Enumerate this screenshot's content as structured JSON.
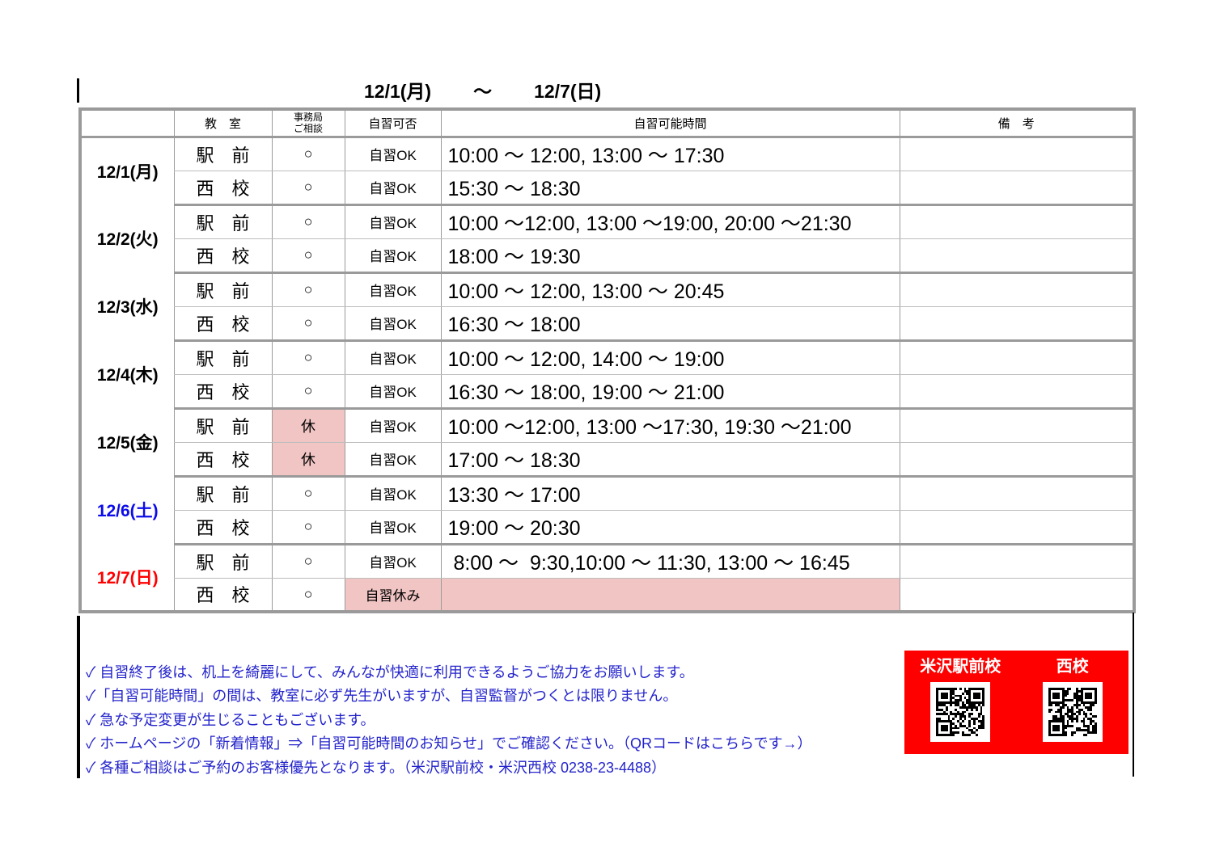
{
  "title": {
    "start": "12/1(月)",
    "tilde": "～",
    "end": "12/7(日)"
  },
  "table": {
    "headers": {
      "classroom": "教　室",
      "office_line1": "事務局",
      "office_line2": "ご相談",
      "availability": "自習可否",
      "hours": "自習可能時間",
      "remarks": "備　考"
    },
    "days": [
      {
        "date": "12/1(月)",
        "color": "#000000",
        "rows": [
          {
            "classroom": "駅　前",
            "office": "○",
            "availability": "自習OK",
            "hours": "10:00 ～ 12:00, 13:00 ～ 17:30",
            "remarks": ""
          },
          {
            "classroom": "西　校",
            "office": "○",
            "availability": "自習OK",
            "hours": "15:30 ～ 18:30",
            "remarks": ""
          }
        ]
      },
      {
        "date": "12/2(火)",
        "color": "#000000",
        "rows": [
          {
            "classroom": "駅　前",
            "office": "○",
            "availability": "自習OK",
            "hours": "10:00 ～12:00, 13:00 ～19:00, 20:00 ～21:30",
            "remarks": ""
          },
          {
            "classroom": "西　校",
            "office": "○",
            "availability": "自習OK",
            "hours": "18:00 ～ 19:30",
            "remarks": ""
          }
        ]
      },
      {
        "date": "12/3(水)",
        "color": "#000000",
        "rows": [
          {
            "classroom": "駅　前",
            "office": "○",
            "availability": "自習OK",
            "hours": "10:00 ～ 12:00, 13:00 ～ 20:45",
            "remarks": ""
          },
          {
            "classroom": "西　校",
            "office": "○",
            "availability": "自習OK",
            "hours": "16:30 ～ 18:00",
            "remarks": ""
          }
        ]
      },
      {
        "date": "12/4(木)",
        "color": "#000000",
        "rows": [
          {
            "classroom": "駅　前",
            "office": "○",
            "availability": "自習OK",
            "hours": "10:00 ～ 12:00, 14:00 ～ 19:00",
            "remarks": ""
          },
          {
            "classroom": "西　校",
            "office": "○",
            "availability": "自習OK",
            "hours": "16:30 ～ 18:00, 19:00 ～ 21:00",
            "remarks": ""
          }
        ]
      },
      {
        "date": "12/5(金)",
        "color": "#000000",
        "rows": [
          {
            "classroom": "駅　前",
            "office": "休",
            "availability": "自習OK",
            "hours": "10:00 ～12:00, 13:00 ～17:30, 19:30 ～21:00",
            "remarks": ""
          },
          {
            "classroom": "西　校",
            "office": "休",
            "availability": "自習OK",
            "hours": "17:00 ～ 18:30",
            "remarks": ""
          }
        ]
      },
      {
        "date": "12/6(土)",
        "color": "#0c0cea",
        "rows": [
          {
            "classroom": "駅　前",
            "office": "○",
            "availability": "自習OK",
            "hours": "13:30 ～ 17:00",
            "remarks": ""
          },
          {
            "classroom": "西　校",
            "office": "○",
            "availability": "自習OK",
            "hours": "19:00 ～ 20:30",
            "remarks": ""
          }
        ]
      },
      {
        "date": "12/7(日)",
        "color": "#ff0000",
        "rows": [
          {
            "classroom": "駅　前",
            "office": "○",
            "availability": "自習OK",
            "hours": " 8:00 ～  9:30,10:00 ～ 11:30, 13:00 ～ 16:45",
            "remarks": ""
          },
          {
            "classroom": "西　校",
            "office": "○",
            "availability": "自習休み",
            "hours": "",
            "remarks": ""
          }
        ]
      }
    ]
  },
  "notes": {
    "items": [
      "✓ 自習終了後は、机上を綺麗にして、みんなが快適に利用できるようご協力をお願いします。",
      "✓「自習可能時間」の間は、教室に必ず先生がいますが、自習監督がつくとは限りません。",
      "✓ 急な予定変更が生じることもございます。",
      "✓ ホームページの「新着情報」⇒「自習可能時間のお知らせ」でご確認ください。（QRコードはこちらです→）",
      "✓ 各種ご相談はご予約のお客様優先となります。（米沢駅前校・米沢西校 0238-23-4488）"
    ]
  },
  "qr_panel": {
    "bg_color": "#ff0000",
    "highlight_color": "#f2c5c5",
    "labels": [
      "米沢駅前校",
      "西校"
    ]
  }
}
